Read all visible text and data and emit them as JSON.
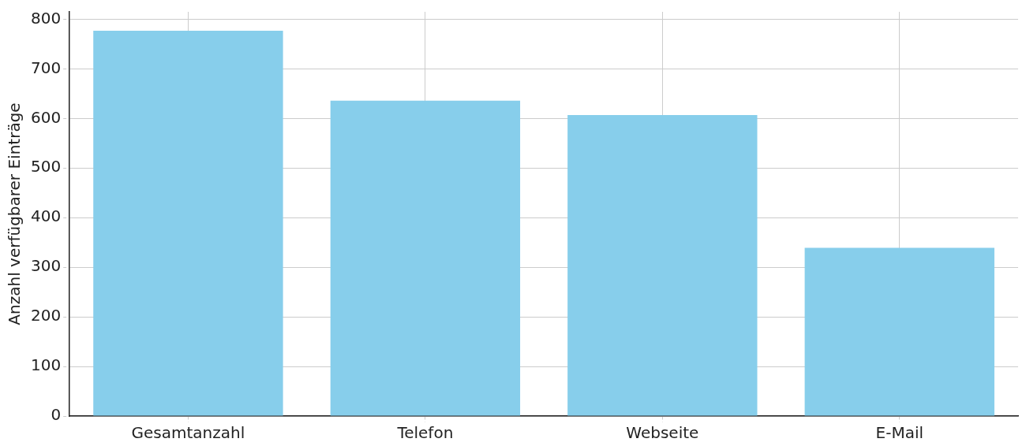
{
  "chart_data": {
    "type": "bar",
    "ylabel": "Anzahl verfügbarer Einträge",
    "categories": [
      "Gesamtanzahl",
      "Telefon",
      "Webseite",
      "E-Mail"
    ],
    "values": [
      777,
      636,
      607,
      339
    ],
    "color": "#87ceeb",
    "ylim": [
      0,
      815
    ],
    "yticks": [
      0,
      100,
      200,
      300,
      400,
      500,
      600,
      700,
      800
    ],
    "grid": true,
    "legend": false
  }
}
